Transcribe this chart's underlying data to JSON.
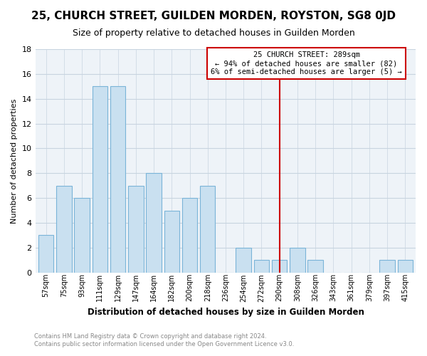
{
  "title": "25, CHURCH STREET, GUILDEN MORDEN, ROYSTON, SG8 0JD",
  "subtitle": "Size of property relative to detached houses in Guilden Morden",
  "xlabel": "Distribution of detached houses by size in Guilden Morden",
  "ylabel": "Number of detached properties",
  "categories": [
    "57sqm",
    "75sqm",
    "93sqm",
    "111sqm",
    "129sqm",
    "147sqm",
    "164sqm",
    "182sqm",
    "200sqm",
    "218sqm",
    "236sqm",
    "254sqm",
    "272sqm",
    "290sqm",
    "308sqm",
    "326sqm",
    "343sqm",
    "361sqm",
    "379sqm",
    "397sqm",
    "415sqm"
  ],
  "values": [
    3,
    7,
    6,
    15,
    15,
    7,
    8,
    5,
    6,
    7,
    0,
    2,
    1,
    1,
    2,
    1,
    0,
    0,
    0,
    1,
    1
  ],
  "bar_color": "#c9e0f0",
  "bar_edge_color": "#7ab4d8",
  "marker_x_label": "290sqm",
  "marker_label": "25 CHURCH STREET: 289sqm",
  "annotation_line1": "← 94% of detached houses are smaller (82)",
  "annotation_line2": "6% of semi-detached houses are larger (5) →",
  "marker_color": "#cc0000",
  "ylim": [
    0,
    18
  ],
  "yticks": [
    0,
    2,
    4,
    6,
    8,
    10,
    12,
    14,
    16,
    18
  ],
  "footer1": "Contains HM Land Registry data © Crown copyright and database right 2024.",
  "footer2": "Contains public sector information licensed under the Open Government Licence v3.0.",
  "bg_color": "#ffffff",
  "plot_bg_color": "#eef3f8",
  "grid_color": "#c8d4e0",
  "title_fontsize": 11,
  "subtitle_fontsize": 9
}
